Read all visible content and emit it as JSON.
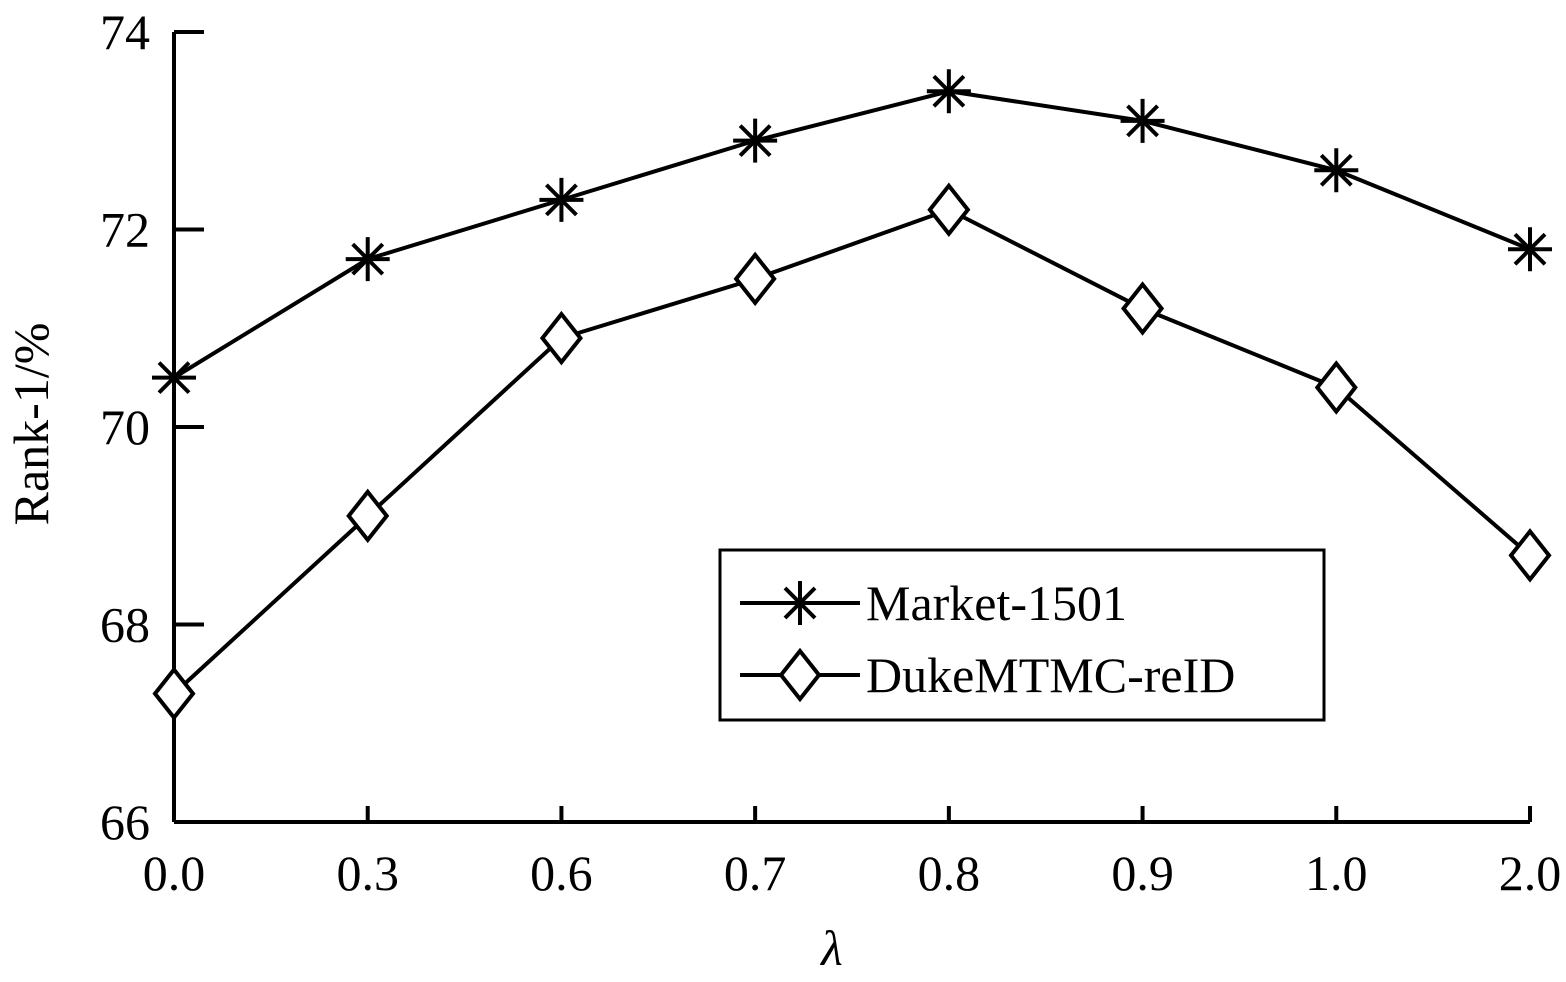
{
  "chart_data": {
    "type": "line",
    "title": "",
    "xlabel": "λ",
    "ylabel": "Rank-1/%",
    "categories": [
      "0.0",
      "0.3",
      "0.6",
      "0.7",
      "0.8",
      "0.9",
      "1.0",
      "2.0"
    ],
    "ylim": [
      66,
      74
    ],
    "yticks": [
      "66",
      "68",
      "70",
      "72",
      "74"
    ],
    "grid": false,
    "legend_position": "bottom-right",
    "series": [
      {
        "name": "Market-1501",
        "marker": "asterisk",
        "values": [
          70.5,
          71.7,
          72.3,
          72.9,
          73.4,
          73.1,
          72.6,
          71.8
        ]
      },
      {
        "name": "DukeMTMC-reID",
        "marker": "diamond",
        "values": [
          67.3,
          69.1,
          70.9,
          71.5,
          72.2,
          71.2,
          70.4,
          68.7
        ]
      }
    ]
  }
}
